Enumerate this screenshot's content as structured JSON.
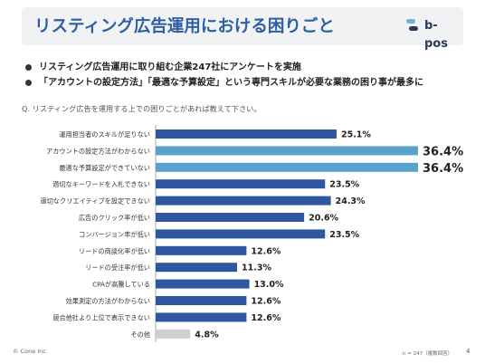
{
  "slide": {
    "title": "リスティング広告運用における困りごと",
    "logo_text": "b-pos",
    "bullets": [
      "リスティング広告運用に取り組む企業247社にアンケートを実施",
      "「アカウントの設定方法」「最適な予算設定」という専門スキルが必要な業務の困り事が最多に"
    ],
    "question": "Q. リスティング広告を運用する上での困りごとがあれば教えて下さい。",
    "footer_copyright": "© Cone Inc.",
    "footer_note": "n = 247（複数回答）",
    "page_number": "4"
  },
  "colors": {
    "bar_default": "#2f56a0",
    "bar_highlight": "#5aa2cd",
    "bar_other": "#cfcfcf",
    "title": "#2e5fa3"
  },
  "chart_data": {
    "type": "bar",
    "orientation": "horizontal",
    "unit": "%",
    "xlim": [
      0,
      36.4
    ],
    "grid": false,
    "categories": [
      "運用担当者のスキルが足りない",
      "アカウントの設定方法がわからない",
      "最適な予算設定ができていない",
      "適切なキーワードを入札できない",
      "適切なクリエイティブを設定できない",
      "広告のクリック率が低い",
      "コンバージョン率が低い",
      "リードの商談化率が低い",
      "リードの受注率が低い",
      "CPAが高騰している",
      "効果測定の方法がわからない",
      "競合他社より上位で表示できない",
      "その他"
    ],
    "values": [
      25.1,
      36.4,
      36.4,
      23.5,
      24.3,
      20.6,
      23.5,
      12.6,
      11.3,
      13.0,
      12.6,
      12.6,
      4.8
    ],
    "value_labels": [
      "25.1%",
      "36.4%",
      "36.4%",
      "23.5%",
      "24.3%",
      "20.6%",
      "23.5%",
      "12.6%",
      "11.3%",
      "13.0%",
      "12.6%",
      "12.6%",
      "4.8%"
    ],
    "highlight": [
      false,
      true,
      true,
      false,
      false,
      false,
      false,
      false,
      false,
      false,
      false,
      false,
      false
    ],
    "other": [
      false,
      false,
      false,
      false,
      false,
      false,
      false,
      false,
      false,
      false,
      false,
      false,
      true
    ]
  }
}
